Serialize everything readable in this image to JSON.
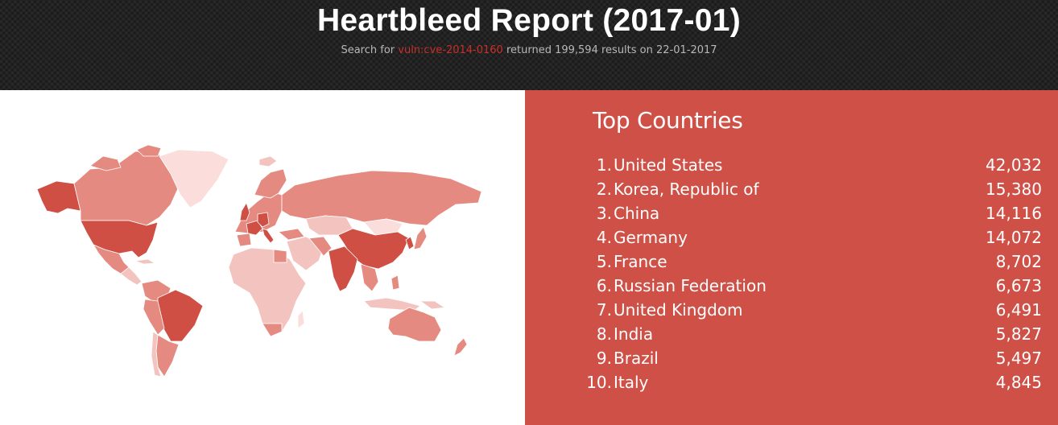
{
  "header": {
    "title": "Heartbleed Report (2017-01)",
    "subtitle_prefix": "Search for ",
    "query": "vuln:cve-2014-0160",
    "subtitle_suffix": " returned 199,594 results on 22-01-2017"
  },
  "colors": {
    "header_bg": "#222222",
    "panel_bg": "#cf5046",
    "query_link": "#c8302a",
    "map_high": "#cf4f44",
    "map_mid": "#e58a80",
    "map_low": "#f3c4bf",
    "map_lowest": "#fbdedb"
  },
  "top_countries": {
    "title": "Top Countries",
    "items": [
      {
        "rank": "1.",
        "country": "United States",
        "count": "42,032"
      },
      {
        "rank": "2.",
        "country": "Korea, Republic of",
        "count": "15,380"
      },
      {
        "rank": "3.",
        "country": "China",
        "count": "14,116"
      },
      {
        "rank": "4.",
        "country": "Germany",
        "count": "14,072"
      },
      {
        "rank": "5.",
        "country": "France",
        "count": "8,702"
      },
      {
        "rank": "6.",
        "country": "Russian Federation",
        "count": "6,673"
      },
      {
        "rank": "7.",
        "country": "United Kingdom",
        "count": "6,491"
      },
      {
        "rank": "8.",
        "country": "India",
        "count": "5,827"
      },
      {
        "rank": "9.",
        "country": "Brazil",
        "count": "5,497"
      },
      {
        "rank": "10.",
        "country": "Italy",
        "count": "4,845"
      }
    ]
  }
}
